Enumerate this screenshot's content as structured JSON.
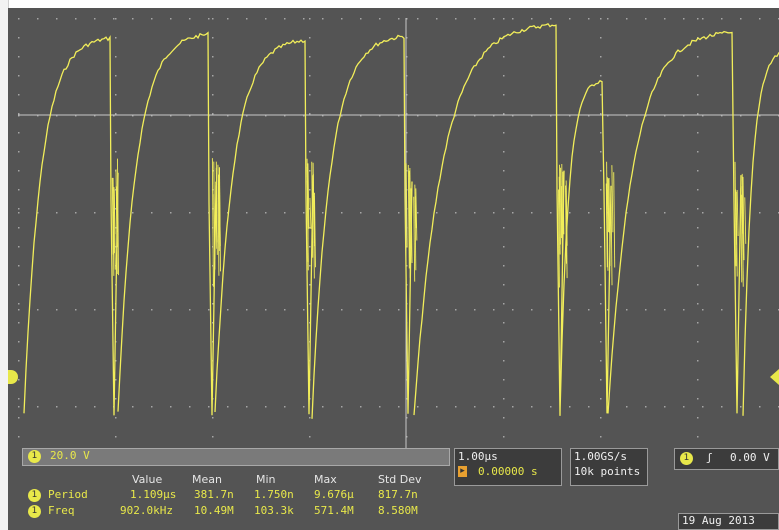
{
  "channel": {
    "id": "1",
    "scale": "20.0 V"
  },
  "measurements": {
    "headers": [
      "Value",
      "Mean",
      "Min",
      "Max",
      "Std Dev"
    ],
    "rows": [
      {
        "id": "1",
        "name": "Period",
        "values": [
          "1.109µs",
          "381.7n",
          "1.750n",
          "9.676µ",
          "817.7n"
        ]
      },
      {
        "id": "1",
        "name": "Freq",
        "values": [
          "902.0kHz",
          "10.49M",
          "103.3k",
          "571.4M",
          "8.580M"
        ]
      }
    ]
  },
  "horizontal": {
    "scale": "1.00µs",
    "delay": "0.00000 s"
  },
  "acquisition": {
    "sample_rate": "1.00GS/s",
    "record_length": "10k points"
  },
  "trigger": {
    "source": "1",
    "level": "0.00 V"
  },
  "date": "19 Aug 2013",
  "colors": {
    "trace": "#f2ee5a",
    "background": "#545454",
    "grid": "#a6a6a6"
  }
}
